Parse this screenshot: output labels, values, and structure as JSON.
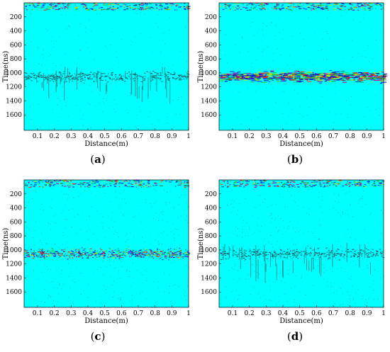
{
  "chart_data": [
    {
      "type": "heatmap",
      "panel_label": "a",
      "xlabel": "Distance(m)",
      "ylabel": "Time(ns)",
      "x_ticks": [
        0.1,
        0.2,
        0.3,
        0.4,
        0.5,
        0.6,
        0.7,
        0.8,
        0.9,
        1
      ],
      "y_ticks": [
        200,
        400,
        600,
        800,
        1000,
        1200,
        1400,
        1600
      ],
      "xlim": [
        0.02,
        1
      ],
      "ylim": [
        0,
        1820
      ],
      "reflection_band_ns": [
        950,
        1150
      ],
      "band_strength": 0.45,
      "background_color": "#00ffff",
      "style": "diffuse"
    },
    {
      "type": "heatmap",
      "panel_label": "b",
      "xlabel": "Distance(m)",
      "ylabel": "Time(ns)",
      "x_ticks": [
        0.1,
        0.2,
        0.3,
        0.4,
        0.5,
        0.6,
        0.7,
        0.8,
        0.9,
        1
      ],
      "y_ticks": [
        200,
        400,
        600,
        800,
        1000,
        1200,
        1400,
        1600
      ],
      "xlim": [
        0.02,
        1
      ],
      "ylim": [
        0,
        1820
      ],
      "reflection_band_ns": [
        950,
        1150
      ],
      "band_strength": 0.9,
      "background_color": "#00ffff",
      "style": "layered"
    },
    {
      "type": "heatmap",
      "panel_label": "c",
      "xlabel": "Distance(m)",
      "ylabel": "Time(ns)",
      "x_ticks": [
        0.1,
        0.2,
        0.3,
        0.4,
        0.5,
        0.6,
        0.7,
        0.8,
        0.9,
        1
      ],
      "y_ticks": [
        200,
        400,
        600,
        800,
        1000,
        1200,
        1400,
        1600
      ],
      "xlim": [
        0.02,
        1
      ],
      "ylim": [
        0,
        1820
      ],
      "reflection_band_ns": [
        950,
        1150
      ],
      "band_strength": 0.75,
      "background_color": "#00ffff",
      "style": "noisy"
    },
    {
      "type": "heatmap",
      "panel_label": "d",
      "xlabel": "Distance(m)",
      "ylabel": "Time(ns)",
      "x_ticks": [
        0.1,
        0.2,
        0.3,
        0.4,
        0.5,
        0.6,
        0.7,
        0.8,
        0.9,
        1
      ],
      "y_ticks": [
        200,
        400,
        600,
        800,
        1000,
        1200,
        1400,
        1600
      ],
      "xlim": [
        0.02,
        1
      ],
      "ylim": [
        0,
        1820
      ],
      "reflection_band_ns": [
        950,
        1150
      ],
      "band_strength": 0.4,
      "background_color": "#00ffff",
      "style": "sparse"
    }
  ]
}
